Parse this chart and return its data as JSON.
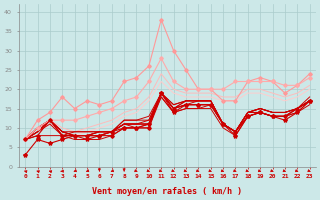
{
  "bg_color": "#cce8e8",
  "grid_color": "#aacccc",
  "xlabel": "Vent moyen/en rafales ( km/h )",
  "xlabel_color": "#cc0000",
  "ylabel_values": [
    0,
    5,
    10,
    15,
    20,
    25,
    30,
    35,
    40
  ],
  "xlim": [
    -0.5,
    23.5
  ],
  "ylim": [
    0,
    42
  ],
  "x": [
    0,
    1,
    2,
    3,
    4,
    5,
    6,
    7,
    8,
    9,
    10,
    11,
    12,
    13,
    14,
    15,
    16,
    17,
    18,
    19,
    20,
    21,
    22,
    23
  ],
  "lines": [
    {
      "y": [
        7,
        12,
        14,
        18,
        15,
        17,
        16,
        17,
        22,
        23,
        26,
        38,
        30,
        25,
        20,
        20,
        17,
        17,
        22,
        23,
        22,
        19,
        21,
        24
      ],
      "color": "#ff9999",
      "lw": 0.8,
      "marker": "D",
      "ms": 1.8
    },
    {
      "y": [
        7,
        10,
        12,
        12,
        12,
        13,
        14,
        15,
        17,
        18,
        22,
        28,
        22,
        20,
        20,
        20,
        20,
        22,
        22,
        22,
        22,
        21,
        21,
        23
      ],
      "color": "#ffaaaa",
      "lw": 0.8,
      "marker": "D",
      "ms": 1.8
    },
    {
      "y": [
        7,
        9,
        12,
        10,
        9,
        10,
        11,
        12,
        14,
        15,
        18,
        24,
        20,
        19,
        19,
        19,
        18,
        18,
        20,
        20,
        19,
        18,
        19,
        21
      ],
      "color": "#ffbbbb",
      "lw": 0.7,
      "marker": null,
      "ms": 0
    },
    {
      "y": [
        7,
        9,
        11,
        9,
        8,
        9,
        10,
        11,
        13,
        14,
        17,
        22,
        19,
        18,
        18,
        18,
        17,
        17,
        19,
        19,
        18,
        17,
        18,
        20
      ],
      "color": "#ffcccc",
      "lw": 0.7,
      "marker": null,
      "ms": 0
    },
    {
      "y": [
        3,
        7,
        6,
        7,
        8,
        7,
        8,
        9,
        10,
        10,
        11,
        19,
        14,
        16,
        16,
        16,
        11,
        8,
        13,
        14,
        13,
        12,
        14,
        17
      ],
      "color": "#cc0000",
      "lw": 0.8,
      "marker": "*",
      "ms": 3.0
    },
    {
      "y": [
        7,
        8,
        12,
        8,
        8,
        8,
        8,
        8,
        10,
        10,
        10,
        19,
        15,
        16,
        16,
        16,
        11,
        9,
        13,
        14,
        13,
        13,
        15,
        17
      ],
      "color": "#cc0000",
      "lw": 0.8,
      "marker": "D",
      "ms": 1.8
    },
    {
      "y": [
        7,
        9,
        12,
        8,
        8,
        8,
        8,
        9,
        11,
        11,
        11,
        19,
        15,
        17,
        17,
        17,
        11,
        9,
        14,
        14,
        13,
        13,
        15,
        17
      ],
      "color": "#cc0000",
      "lw": 0.7,
      "marker": null,
      "ms": 0
    },
    {
      "y": [
        7,
        9,
        12,
        8,
        9,
        9,
        9,
        9,
        11,
        11,
        11,
        19,
        15,
        17,
        17,
        17,
        11,
        9,
        14,
        15,
        14,
        14,
        15,
        17
      ],
      "color": "#cc0000",
      "lw": 0.7,
      "marker": null,
      "ms": 0
    },
    {
      "y": [
        7,
        10,
        12,
        9,
        8,
        8,
        8,
        9,
        12,
        12,
        13,
        19,
        16,
        17,
        17,
        17,
        11,
        9,
        14,
        15,
        14,
        14,
        15,
        17
      ],
      "color": "#cc0000",
      "lw": 0.7,
      "marker": null,
      "ms": 0
    },
    {
      "y": [
        7,
        8,
        8,
        8,
        8,
        8,
        9,
        9,
        11,
        10,
        11,
        18,
        14,
        15,
        15,
        16,
        11,
        9,
        13,
        14,
        13,
        13,
        14,
        17
      ],
      "color": "#cc0000",
      "lw": 0.7,
      "marker": null,
      "ms": 0
    },
    {
      "y": [
        7,
        10,
        12,
        9,
        9,
        9,
        9,
        9,
        12,
        12,
        12,
        19,
        16,
        17,
        17,
        17,
        11,
        9,
        14,
        15,
        14,
        14,
        15,
        18
      ],
      "color": "#cc0000",
      "lw": 0.7,
      "marker": null,
      "ms": 0
    },
    {
      "y": [
        7,
        9,
        11,
        8,
        7,
        7,
        7,
        8,
        10,
        10,
        10,
        18,
        14,
        15,
        15,
        15,
        10,
        8,
        13,
        14,
        13,
        13,
        14,
        16
      ],
      "color": "#cc0000",
      "lw": 0.7,
      "marker": null,
      "ms": 0
    },
    {
      "y": [
        7,
        9,
        12,
        9,
        8,
        8,
        9,
        9,
        11,
        11,
        11,
        19,
        15,
        16,
        16,
        16,
        11,
        9,
        14,
        15,
        14,
        14,
        15,
        17
      ],
      "color": "#cc0000",
      "lw": 0.7,
      "marker": null,
      "ms": 0
    },
    {
      "y": [
        7,
        10,
        12,
        9,
        8,
        8,
        9,
        9,
        11,
        11,
        12,
        19,
        15,
        16,
        17,
        17,
        11,
        9,
        14,
        14,
        13,
        13,
        15,
        17
      ],
      "color": "#cc0000",
      "lw": 0.7,
      "marker": null,
      "ms": 0
    }
  ],
  "wind_angles": [
    225,
    225,
    225,
    270,
    315,
    315,
    0,
    315,
    0,
    45,
    45,
    45,
    45,
    45,
    45,
    45,
    45,
    45,
    45,
    45,
    45,
    45,
    45,
    45
  ],
  "tick_fontsize": 4.5,
  "xlabel_fontsize": 6.0
}
